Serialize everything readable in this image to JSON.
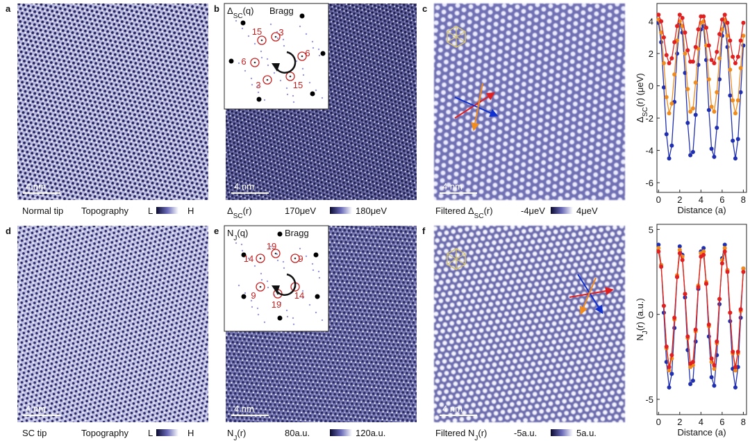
{
  "panels": [
    {
      "letter": "a",
      "scale_bar": "4 nm",
      "caption": [
        [
          "Normal tip"
        ],
        [
          "Topography"
        ]
      ],
      "colorbar": [
        [
          "L"
        ],
        [
          "H"
        ]
      ]
    },
    {
      "letter": "b",
      "scale_bar": "4 nm",
      "caption": [
        [
          "Δ",
          "SC",
          "(r)"
        ]
      ],
      "colorbar": [
        [
          "170μeV"
        ],
        [
          "180μeV"
        ]
      ],
      "inset": {
        "title": [
          "Δ",
          "SC",
          "(q)"
        ],
        "bragg": "Bragg",
        "spots": [
          "15",
          "3",
          "6",
          "6",
          "3",
          "15"
        ]
      }
    },
    {
      "letter": "c",
      "scale_bar": "4 nm",
      "caption": [
        [
          "Filtered Δ",
          "SC",
          "(r)"
        ]
      ],
      "colorbar": [
        [
          "-4μeV"
        ],
        [
          "4μeV"
        ]
      ]
    },
    {
      "letter": "d",
      "scale_bar": "4 nm",
      "caption": [
        [
          "SC tip"
        ],
        [
          "Topography"
        ]
      ],
      "colorbar": [
        [
          "L"
        ],
        [
          "H"
        ]
      ]
    },
    {
      "letter": "e",
      "scale_bar": "4 nm",
      "caption": [
        [
          "N",
          "J",
          "(r)"
        ]
      ],
      "colorbar": [
        [
          "80a.u."
        ],
        [
          "120a.u."
        ]
      ],
      "inset": {
        "title": [
          "N",
          "J",
          "(q)"
        ],
        "bragg": "Bragg",
        "spots": [
          "14",
          "19",
          "9",
          "9",
          "19",
          "14"
        ]
      }
    },
    {
      "letter": "f",
      "scale_bar": "4 nm",
      "caption": [
        [
          "Filtered N",
          "J",
          "(r)"
        ]
      ],
      "colorbar": [
        [
          "-5a.u."
        ],
        [
          "5a.u."
        ]
      ]
    }
  ],
  "chart_data": [
    {
      "type": "line",
      "xlabel": [
        "Distance (a)"
      ],
      "ylabel": [
        "Δ",
        "SC",
        "(r) (μeV)"
      ],
      "xlim": [
        -0.15,
        8.3
      ],
      "ylim": [
        -6.6,
        5.1
      ],
      "xticks": [
        0,
        2,
        4,
        6,
        8
      ],
      "yticks": [
        -6,
        -4,
        -2,
        0,
        2,
        4
      ],
      "x": [
        0,
        0.25,
        0.5,
        0.75,
        1,
        1.25,
        1.5,
        1.75,
        2,
        2.25,
        2.5,
        2.75,
        3,
        3.25,
        3.5,
        3.75,
        4,
        4.25,
        4.5,
        4.75,
        5,
        5.25,
        5.5,
        5.75,
        6,
        6.25,
        6.5,
        6.75,
        7,
        7.25,
        7.5,
        7.75,
        8
      ],
      "series": [
        {
          "color": "#1f2fb0",
          "values": [
            3.9,
            2.7,
            -0.1,
            -3.0,
            -4.5,
            -3.7,
            -1.0,
            2.0,
            3.8,
            3.3,
            0.8,
            -2.3,
            -4.3,
            -4.1,
            -1.8,
            1.3,
            3.5,
            3.7,
            1.6,
            -1.5,
            -3.9,
            -4.4,
            -2.6,
            0.4,
            3.1,
            3.9,
            2.4,
            -0.6,
            -3.4,
            -4.5,
            -3.3,
            -0.4,
            2.5
          ]
        },
        {
          "color": "#f08c1e",
          "values": [
            4.1,
            3.3,
            1.4,
            -0.7,
            -1.7,
            -1.1,
            0.7,
            2.8,
            4.0,
            3.7,
            2.0,
            -0.2,
            -1.6,
            -1.4,
            0.2,
            2.3,
            3.9,
            4.0,
            2.5,
            0.4,
            -1.3,
            -1.6,
            -0.4,
            1.7,
            3.5,
            4.1,
            3.1,
            1.0,
            -0.9,
            -1.7,
            -0.9,
            1.1,
            3.1
          ]
        },
        {
          "color": "#e02020",
          "values": [
            4.4,
            4.0,
            3.0,
            1.9,
            1.4,
            1.7,
            2.7,
            3.7,
            4.4,
            4.2,
            3.3,
            2.2,
            1.5,
            1.5,
            2.4,
            3.5,
            4.3,
            4.3,
            3.6,
            2.5,
            1.6,
            1.4,
            2.1,
            3.2,
            4.1,
            4.4,
            3.9,
            2.8,
            1.8,
            1.4,
            1.8,
            2.8,
            3.9
          ]
        }
      ]
    },
    {
      "type": "line",
      "xlabel": [
        "Distance (a)"
      ],
      "ylabel": [
        "N",
        "J",
        "(r) (a.u.)"
      ],
      "xlim": [
        -0.15,
        8.3
      ],
      "ylim": [
        -5.9,
        5.3
      ],
      "xticks": [
        0,
        2,
        4,
        6,
        8
      ],
      "yticks": [
        -5,
        0,
        5
      ],
      "x": [
        0,
        0.25,
        0.5,
        0.75,
        1,
        1.25,
        1.5,
        1.75,
        2,
        2.25,
        2.5,
        2.75,
        3,
        3.25,
        3.5,
        3.75,
        4,
        4.25,
        4.5,
        4.75,
        5,
        5.25,
        5.5,
        5.75,
        6,
        6.25,
        6.5,
        6.75,
        7,
        7.25,
        7.5,
        7.75,
        8
      ],
      "series": [
        {
          "color": "#1f2fb0",
          "values": [
            4.1,
            2.9,
            0.1,
            -2.8,
            -4.3,
            -3.5,
            -0.8,
            2.2,
            4.0,
            3.5,
            1.0,
            -2.1,
            -4.1,
            -3.9,
            -1.6,
            1.5,
            3.7,
            3.9,
            1.8,
            -1.3,
            -3.7,
            -4.2,
            -2.4,
            0.6,
            3.3,
            4.1,
            2.6,
            -0.4,
            -3.2,
            -4.3,
            -3.1,
            -0.2,
            2.7
          ]
        },
        {
          "color": "#f08c1e",
          "values": [
            3.9,
            2.9,
            0.5,
            -2.0,
            -3.3,
            -2.6,
            -0.3,
            2.3,
            3.8,
            3.4,
            1.2,
            -1.4,
            -3.1,
            -3.0,
            -1.0,
            1.7,
            3.6,
            3.7,
            1.9,
            -0.7,
            -2.8,
            -3.2,
            -1.7,
            0.9,
            3.2,
            3.9,
            2.6,
            0.1,
            -2.3,
            -3.3,
            -2.3,
            0.2,
            2.7
          ]
        },
        {
          "color": "#e02020",
          "values": [
            3.7,
            2.8,
            0.5,
            -1.9,
            -3.1,
            -2.4,
            -0.2,
            2.2,
            3.6,
            3.2,
            1.2,
            -1.3,
            -2.9,
            -2.8,
            -0.9,
            1.6,
            3.4,
            3.5,
            1.8,
            -0.6,
            -2.6,
            -3.0,
            -1.6,
            0.9,
            3.0,
            3.7,
            2.5,
            0.1,
            -2.2,
            -3.1,
            -2.2,
            0.3,
            2.5
          ]
        }
      ]
    }
  ]
}
